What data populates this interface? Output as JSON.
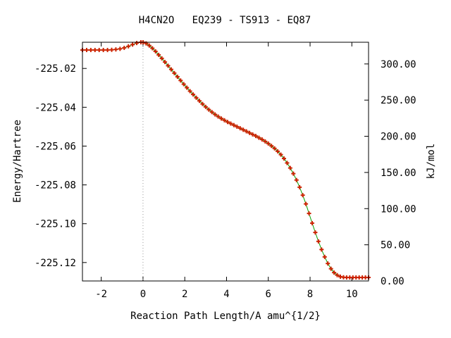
{
  "chart_data": {
    "type": "line",
    "title": "H4CN2O   EQ239 - TS913 - EQ87",
    "xlabel": "Reaction Path Length/A amu^{1/2}",
    "ylabel": "Energy/Hartree",
    "y2label": "kJ/mol",
    "xlim": [
      -2.9,
      10.8
    ],
    "ylim": [
      -225.1295,
      -225.0065
    ],
    "y2lim": [
      0,
      330
    ],
    "x_ticks": [
      -2,
      0,
      2,
      4,
      6,
      8,
      10
    ],
    "x_tick_labels": [
      "-2",
      "0",
      "2",
      "4",
      "6",
      "8",
      "10"
    ],
    "y_ticks": [
      -225.02,
      -225.04,
      -225.06,
      -225.08,
      -225.1,
      -225.12
    ],
    "y_tick_labels": [
      "-225.02",
      "-225.04",
      "-225.06",
      "-225.08",
      "-225.10",
      "-225.12"
    ],
    "y2_ticks": [
      0,
      50,
      100,
      150,
      200,
      250,
      300
    ],
    "y2_tick_labels": [
      "0.00",
      "50.00",
      "100.00",
      "150.00",
      "200.00",
      "250.00",
      "300.00"
    ],
    "ts_marker_x": 0,
    "grid": false,
    "line_color": "#00a000",
    "marker_color": "#cc2200",
    "series": [
      {
        "x": [
          -2.9,
          -2.7,
          -2.5,
          -2.3,
          -2.1,
          -1.9,
          -1.7,
          -1.5,
          -1.3,
          -1.1,
          -0.9,
          -0.7,
          -0.5,
          -0.3,
          -0.1,
          0.0,
          0.15,
          0.3,
          0.45,
          0.6,
          0.75,
          0.9,
          1.05,
          1.2,
          1.35,
          1.5,
          1.65,
          1.8,
          1.95,
          2.1,
          2.25,
          2.4,
          2.55,
          2.7,
          2.85,
          3.0,
          3.15,
          3.3,
          3.45,
          3.6,
          3.75,
          3.9,
          4.05,
          4.2,
          4.35,
          4.5,
          4.65,
          4.8,
          4.95,
          5.1,
          5.25,
          5.4,
          5.55,
          5.7,
          5.85,
          6.0,
          6.15,
          6.3,
          6.45,
          6.6,
          6.75,
          6.9,
          7.05,
          7.2,
          7.35,
          7.5,
          7.65,
          7.8,
          7.95,
          8.1,
          8.25,
          8.4,
          8.55,
          8.7,
          8.85,
          9.0,
          9.15,
          9.3,
          9.45,
          9.6,
          9.75,
          9.9,
          10.05,
          10.2,
          10.35,
          10.5,
          10.65,
          10.8
        ],
        "y": [
          -225.0105,
          -225.0105,
          -225.0105,
          -225.0105,
          -225.0105,
          -225.0105,
          -225.0105,
          -225.0104,
          -225.0102,
          -225.0099,
          -225.0094,
          -225.0086,
          -225.0077,
          -225.0069,
          -225.0065,
          -225.0065,
          -225.0071,
          -225.0082,
          -225.0096,
          -225.0112,
          -225.013,
          -225.0148,
          -225.0167,
          -225.0186,
          -225.0205,
          -225.0224,
          -225.0243,
          -225.0262,
          -225.0281,
          -225.0299,
          -225.0317,
          -225.0334,
          -225.0351,
          -225.0367,
          -225.0383,
          -225.0398,
          -225.0412,
          -225.0425,
          -225.0437,
          -225.0448,
          -225.0458,
          -225.0467,
          -225.0476,
          -225.0484,
          -225.0492,
          -225.05,
          -225.0508,
          -225.0516,
          -225.0524,
          -225.0532,
          -225.054,
          -225.0548,
          -225.0557,
          -225.0566,
          -225.0576,
          -225.0587,
          -225.0599,
          -225.0612,
          -225.0627,
          -225.0644,
          -225.0664,
          -225.0687,
          -225.0713,
          -225.0742,
          -225.0775,
          -225.0812,
          -225.0853,
          -225.0898,
          -225.0947,
          -225.0997,
          -225.1045,
          -225.1091,
          -225.1133,
          -225.1171,
          -225.1205,
          -225.1232,
          -225.1252,
          -225.1265,
          -225.1273,
          -225.1276,
          -225.1277,
          -225.1277,
          -225.1277,
          -225.1277,
          -225.1277,
          -225.1277,
          -225.1277,
          -225.1277
        ]
      }
    ]
  }
}
